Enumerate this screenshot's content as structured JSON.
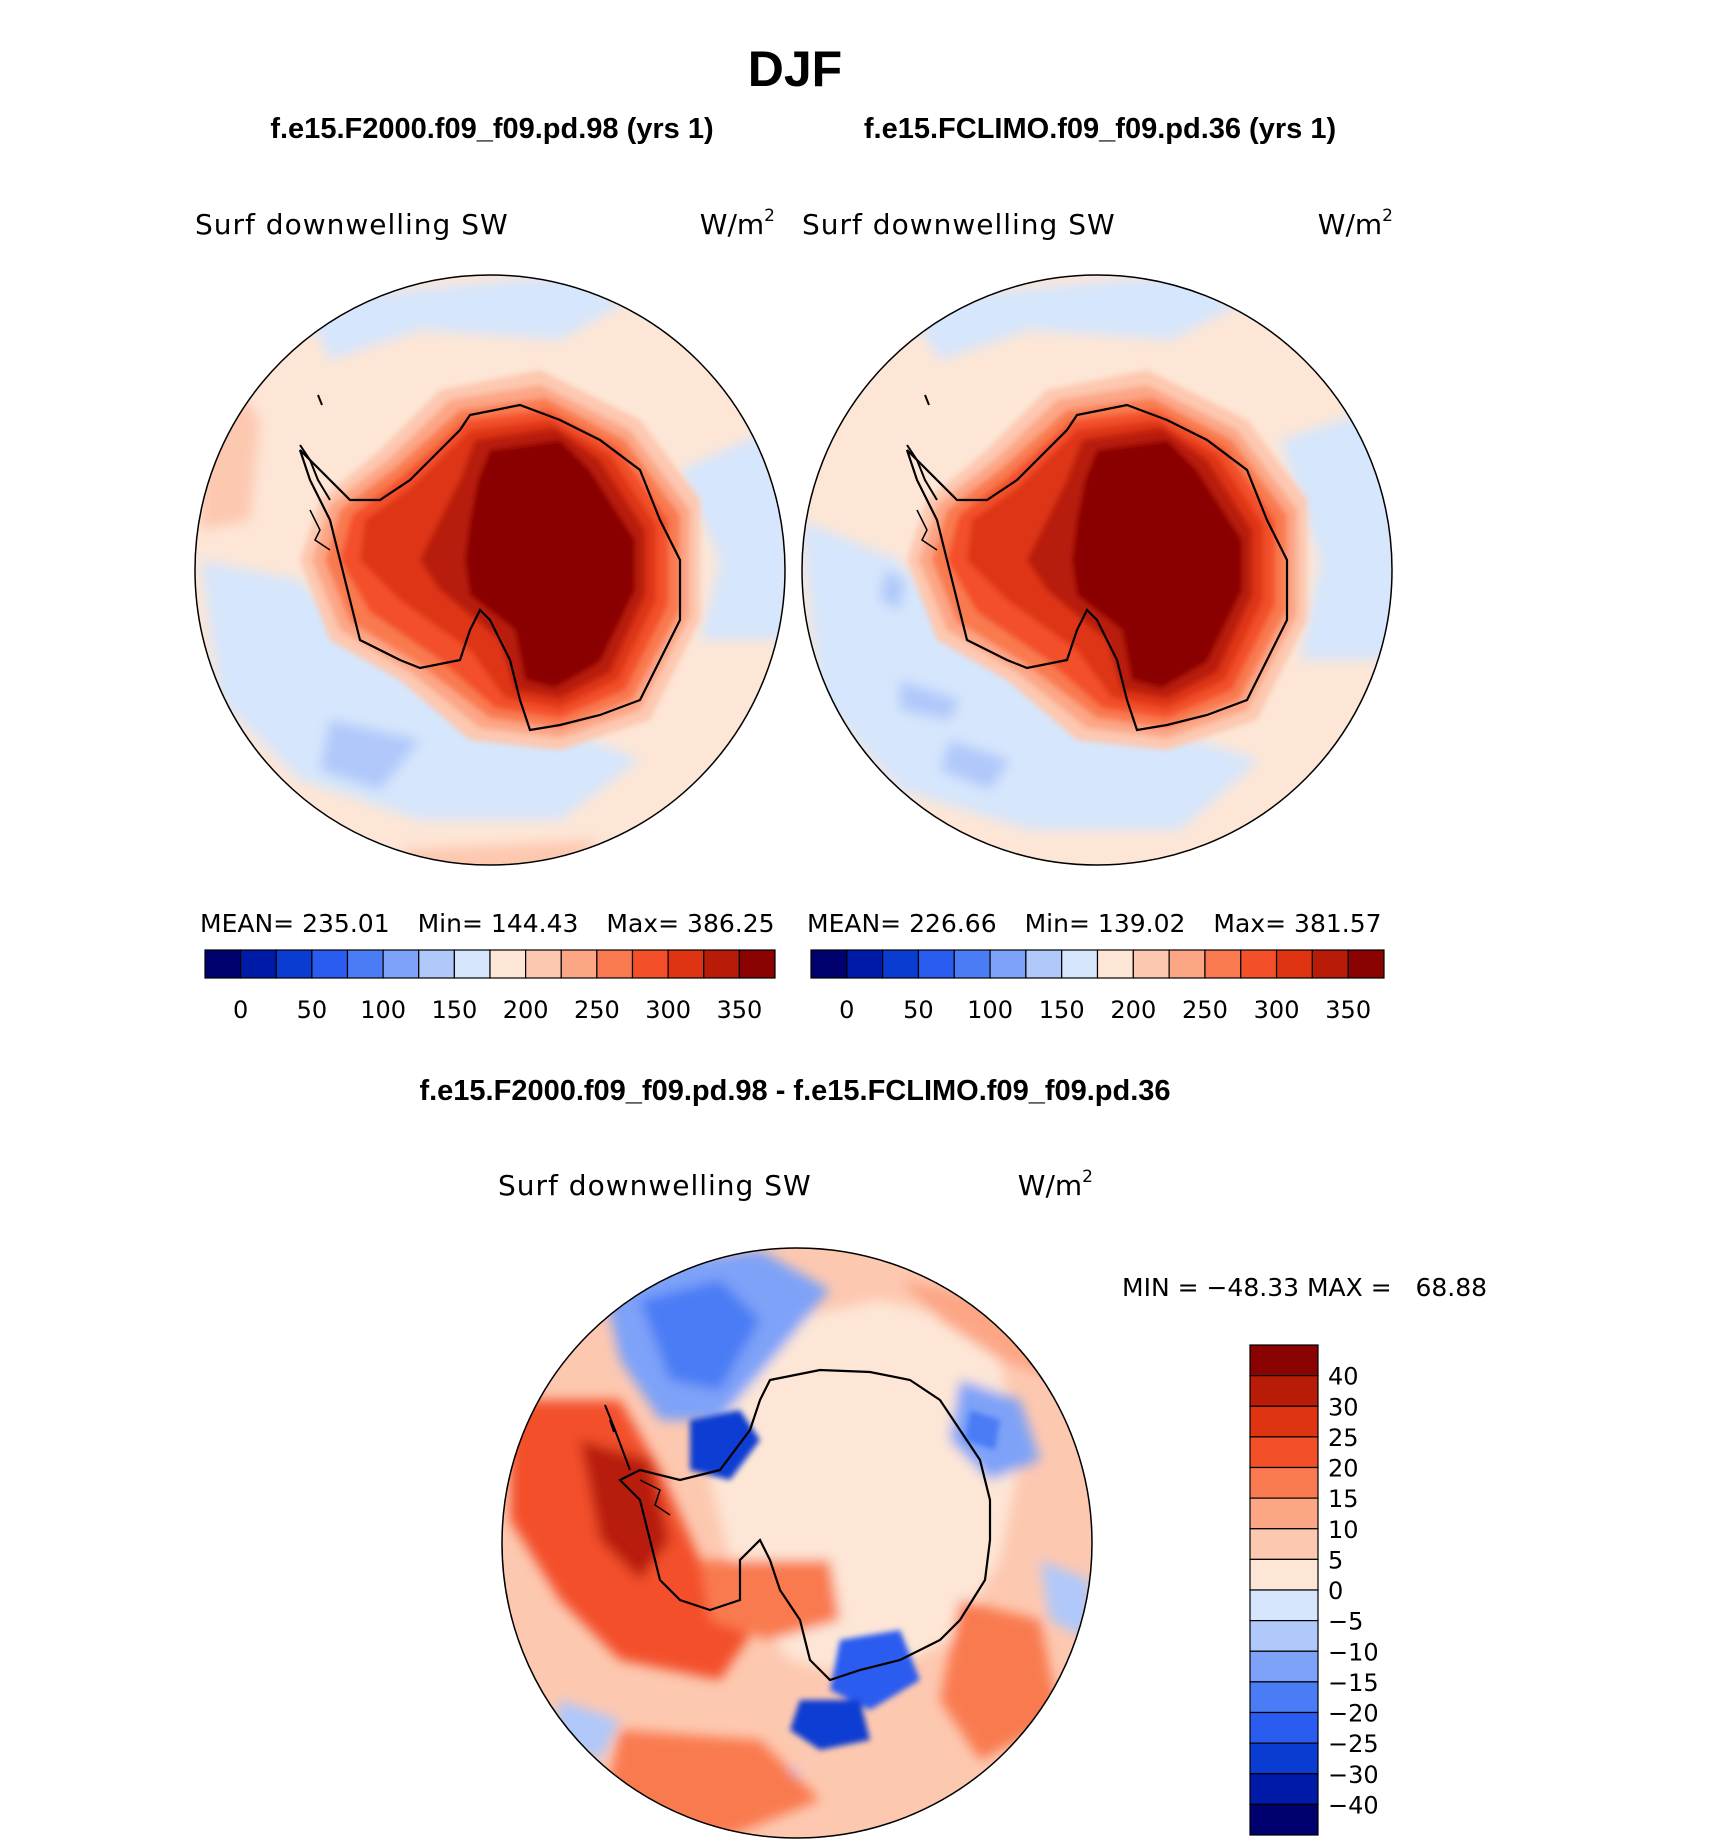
{
  "title": "DJF",
  "panels": [
    {
      "case_title": "f.e15.F2000.f09_f09.pd.98 (yrs 1)",
      "variable": "Surf downwelling SW",
      "units_base": "W/m",
      "units_exp": "2",
      "stats": {
        "mean_label": "MEAN=",
        "mean": "235.01",
        "min_label": "Min=",
        "min": "144.43",
        "max_label": "Max=",
        "max": "386.25"
      }
    },
    {
      "case_title": "f.e15.FCLIMO.f09_f09.pd.36 (yrs 1)",
      "variable": "Surf downwelling SW",
      "units_base": "W/m",
      "units_exp": "2",
      "stats": {
        "mean_label": "MEAN=",
        "mean": "226.66",
        "min_label": "Min=",
        "min": "139.02",
        "max_label": "Max=",
        "max": "381.57"
      }
    }
  ],
  "abs_colorbar": {
    "colors": [
      "#00006e",
      "#001aa8",
      "#0a3cd2",
      "#2a5cf0",
      "#4a7cf5",
      "#7ea2f8",
      "#b0c8fa",
      "#d6e6fc",
      "#fde6d6",
      "#fdc8b0",
      "#fca686",
      "#f97a50",
      "#f3502a",
      "#de3412",
      "#b81c08",
      "#8a0202"
    ],
    "labels": [
      "0",
      "50",
      "100",
      "150",
      "200",
      "250",
      "300",
      "350"
    ]
  },
  "diff": {
    "title": "f.e15.F2000.f09_f09.pd.98 - f.e15.FCLIMO.f09_f09.pd.36",
    "variable": "Surf downwelling SW",
    "units_base": "W/m",
    "units_exp": "2",
    "minmax_text": "MIN = −48.33 MAX =   68.88",
    "colorbar": {
      "colors": [
        "#8a0202",
        "#b81c08",
        "#de3412",
        "#f3502a",
        "#f97a50",
        "#fca686",
        "#fdc8b0",
        "#fde6d6",
        "#d6e6fc",
        "#b0c8fa",
        "#7ea2f8",
        "#4a7cf5",
        "#2a5cf0",
        "#0a3cd2",
        "#001aa8",
        "#00006e"
      ],
      "labels": [
        "40",
        "30",
        "25",
        "20",
        "15",
        "10",
        "5",
        "0",
        "−5",
        "−10",
        "−15",
        "−20",
        "−25",
        "−30",
        "−40"
      ]
    }
  }
}
